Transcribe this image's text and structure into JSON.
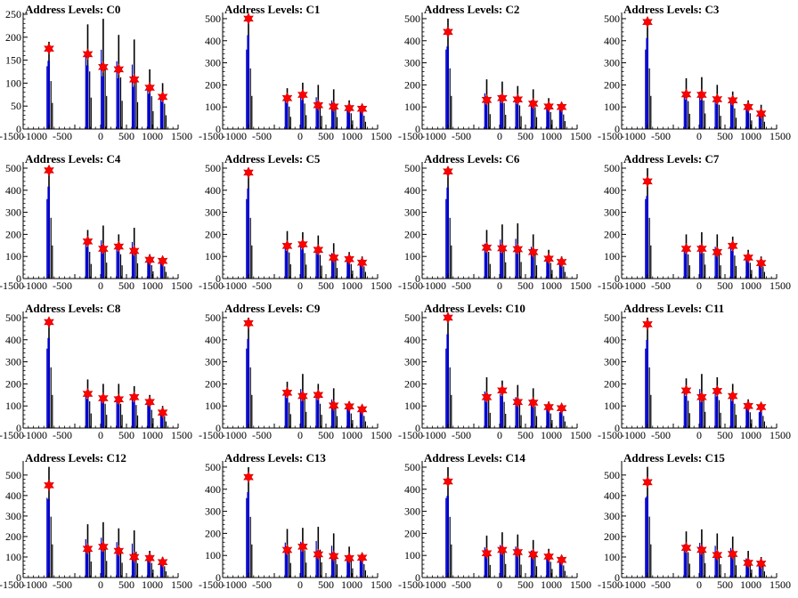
{
  "chart_data": [
    {
      "type": "bar",
      "title": "Address Levels: C0",
      "xlim": [
        -1500,
        1500
      ],
      "ylim": [
        0,
        250
      ],
      "yticks": [
        0,
        50,
        100,
        150,
        200,
        250
      ],
      "xticks": [
        -1500,
        -1000,
        -500,
        0,
        500,
        1000,
        1500
      ],
      "x": [
        -1000,
        -250,
        50,
        350,
        650,
        950,
        1200
      ],
      "markers": [
        175,
        163,
        135,
        130,
        108,
        90,
        70
      ],
      "peaks": [
        190,
        228,
        240,
        205,
        195,
        130,
        100
      ]
    },
    {
      "type": "bar",
      "title": "Address Levels: C1",
      "xlim": [
        -1500,
        1500
      ],
      "ylim": [
        0,
        520
      ],
      "yticks": [
        0,
        100,
        200,
        300,
        400,
        500
      ],
      "xticks": [
        -1500,
        -1000,
        -500,
        0,
        500,
        1000,
        1500
      ],
      "x": [
        -1000,
        -250,
        50,
        350,
        650,
        950,
        1200
      ],
      "markers": [
        500,
        140,
        155,
        108,
        102,
        95,
        92
      ],
      "peaks": [
        500,
        185,
        210,
        200,
        180,
        130,
        110
      ]
    },
    {
      "type": "bar",
      "title": "Address Levels: C2",
      "xlim": [
        -1500,
        1500
      ],
      "ylim": [
        0,
        520
      ],
      "yticks": [
        0,
        100,
        200,
        300,
        400,
        500
      ],
      "xticks": [
        -1500,
        -1000,
        -500,
        0,
        500,
        1000,
        1500
      ],
      "x": [
        -1000,
        -250,
        50,
        350,
        650,
        950,
        1200
      ],
      "markers": [
        440,
        132,
        140,
        134,
        115,
        102,
        100
      ],
      "peaks": [
        500,
        225,
        215,
        195,
        180,
        140,
        120
      ]
    },
    {
      "type": "bar",
      "title": "Address Levels: C3",
      "xlim": [
        -1500,
        1500
      ],
      "ylim": [
        0,
        520
      ],
      "yticks": [
        0,
        100,
        200,
        300,
        400,
        500
      ],
      "xticks": [
        -1500,
        -1000,
        -500,
        0,
        500,
        1000,
        1500
      ],
      "x": [
        -1000,
        -250,
        50,
        350,
        650,
        950,
        1200
      ],
      "markers": [
        485,
        157,
        155,
        135,
        130,
        100,
        70
      ],
      "peaks": [
        500,
        230,
        235,
        200,
        170,
        130,
        110
      ]
    },
    {
      "type": "bar",
      "title": "Address Levels: C4",
      "xlim": [
        -1500,
        1500
      ],
      "ylim": [
        0,
        520
      ],
      "yticks": [
        0,
        100,
        200,
        300,
        400,
        500
      ],
      "xticks": [
        -1500,
        -1000,
        -500,
        0,
        500,
        1000,
        1500
      ],
      "x": [
        -1000,
        -250,
        50,
        350,
        650,
        950,
        1200
      ],
      "markers": [
        490,
        168,
        135,
        145,
        125,
        85,
        80
      ],
      "peaks": [
        500,
        220,
        240,
        200,
        230,
        110,
        100
      ]
    },
    {
      "type": "bar",
      "title": "Address Levels: C5",
      "xlim": [
        -1500,
        1500
      ],
      "ylim": [
        0,
        520
      ],
      "yticks": [
        0,
        100,
        200,
        300,
        400,
        500
      ],
      "xticks": [
        -1500,
        -1000,
        -500,
        0,
        500,
        1000,
        1500
      ],
      "x": [
        -1000,
        -250,
        50,
        350,
        650,
        950,
        1200
      ],
      "markers": [
        480,
        148,
        155,
        130,
        95,
        88,
        72
      ],
      "peaks": [
        500,
        215,
        210,
        195,
        160,
        120,
        100
      ]
    },
    {
      "type": "bar",
      "title": "Address Levels: C6",
      "xlim": [
        -1500,
        1500
      ],
      "ylim": [
        0,
        520
      ],
      "yticks": [
        0,
        100,
        200,
        300,
        400,
        500
      ],
      "xticks": [
        -1500,
        -1000,
        -500,
        0,
        500,
        1000,
        1500
      ],
      "x": [
        -1000,
        -250,
        50,
        350,
        650,
        950,
        1200
      ],
      "markers": [
        485,
        140,
        137,
        133,
        120,
        90,
        75
      ],
      "peaks": [
        500,
        220,
        245,
        250,
        200,
        130,
        100
      ]
    },
    {
      "type": "bar",
      "title": "Address Levels: C7",
      "xlim": [
        -1500,
        1500
      ],
      "ylim": [
        0,
        520
      ],
      "yticks": [
        0,
        100,
        200,
        300,
        400,
        500
      ],
      "xticks": [
        -1500,
        -1000,
        -500,
        0,
        500,
        1000,
        1500
      ],
      "x": [
        -1000,
        -250,
        50,
        350,
        650,
        950,
        1200
      ],
      "markers": [
        440,
        135,
        135,
        120,
        148,
        95,
        70
      ],
      "peaks": [
        500,
        200,
        210,
        200,
        190,
        130,
        100
      ]
    },
    {
      "type": "bar",
      "title": "Address Levels: C8",
      "xlim": [
        -1500,
        1500
      ],
      "ylim": [
        0,
        520
      ],
      "yticks": [
        0,
        100,
        200,
        300,
        400,
        500
      ],
      "xticks": [
        -1500,
        -1000,
        -500,
        0,
        500,
        1000,
        1500
      ],
      "x": [
        -1000,
        -250,
        50,
        350,
        650,
        950,
        1200
      ],
      "markers": [
        480,
        155,
        135,
        130,
        140,
        118,
        70
      ],
      "peaks": [
        500,
        220,
        200,
        200,
        190,
        150,
        100
      ]
    },
    {
      "type": "bar",
      "title": "Address Levels: C9",
      "xlim": [
        -1500,
        1500
      ],
      "ylim": [
        0,
        520
      ],
      "yticks": [
        0,
        100,
        200,
        300,
        400,
        500
      ],
      "xticks": [
        -1500,
        -1000,
        -500,
        0,
        500,
        1000,
        1500
      ],
      "x": [
        -1000,
        -250,
        50,
        350,
        650,
        950,
        1200
      ],
      "markers": [
        475,
        160,
        145,
        150,
        102,
        98,
        85
      ],
      "peaks": [
        500,
        210,
        245,
        200,
        180,
        120,
        100
      ]
    },
    {
      "type": "bar",
      "title": "Address Levels: C10",
      "xlim": [
        -1500,
        1500
      ],
      "ylim": [
        0,
        520
      ],
      "yticks": [
        0,
        100,
        200,
        300,
        400,
        500
      ],
      "xticks": [
        -1500,
        -1000,
        -500,
        0,
        500,
        1000,
        1500
      ],
      "x": [
        -1000,
        -250,
        50,
        350,
        650,
        950,
        1200
      ],
      "markers": [
        500,
        140,
        170,
        118,
        115,
        95,
        90
      ],
      "peaks": [
        500,
        230,
        215,
        195,
        180,
        120,
        100
      ]
    },
    {
      "type": "bar",
      "title": "Address Levels: C11",
      "xlim": [
        -1500,
        1500
      ],
      "ylim": [
        0,
        520
      ],
      "yticks": [
        0,
        100,
        200,
        300,
        400,
        500
      ],
      "xticks": [
        -1500,
        -1000,
        -500,
        0,
        500,
        1000,
        1500
      ],
      "x": [
        -1000,
        -250,
        50,
        350,
        650,
        950,
        1200
      ],
      "markers": [
        470,
        170,
        140,
        168,
        145,
        100,
        95
      ],
      "peaks": [
        500,
        225,
        245,
        230,
        200,
        130,
        100
      ]
    },
    {
      "type": "bar",
      "title": "Address Levels: C12",
      "xlim": [
        -1500,
        1500
      ],
      "ylim": [
        0,
        560
      ],
      "yticks": [
        0,
        100,
        200,
        300,
        400,
        500
      ],
      "xticks": [
        -1500,
        -1000,
        -500,
        0,
        500,
        1000,
        1500
      ],
      "x": [
        -1000,
        -250,
        50,
        350,
        650,
        950,
        1200
      ],
      "markers": [
        450,
        140,
        150,
        130,
        100,
        95,
        75
      ],
      "peaks": [
        540,
        260,
        270,
        240,
        230,
        130,
        100
      ]
    },
    {
      "type": "bar",
      "title": "Address Levels: C13",
      "xlim": [
        -1500,
        1500
      ],
      "ylim": [
        0,
        520
      ],
      "yticks": [
        0,
        100,
        200,
        300,
        400,
        500
      ],
      "xticks": [
        -1500,
        -1000,
        -500,
        0,
        500,
        1000,
        1500
      ],
      "x": [
        -1000,
        -250,
        50,
        350,
        650,
        950,
        1200
      ],
      "markers": [
        455,
        125,
        140,
        105,
        97,
        88,
        90
      ],
      "peaks": [
        500,
        220,
        225,
        230,
        200,
        140,
        110
      ]
    },
    {
      "type": "bar",
      "title": "Address Levels: C14",
      "xlim": [
        -1500,
        1500
      ],
      "ylim": [
        0,
        520
      ],
      "yticks": [
        0,
        100,
        200,
        300,
        400,
        500
      ],
      "xticks": [
        -1500,
        -1000,
        -500,
        0,
        500,
        1000,
        1500
      ],
      "x": [
        -1000,
        -250,
        50,
        350,
        650,
        950,
        1200
      ],
      "markers": [
        435,
        110,
        125,
        115,
        105,
        95,
        80
      ],
      "peaks": [
        500,
        190,
        205,
        195,
        170,
        130,
        100
      ]
    },
    {
      "type": "bar",
      "title": "Address Levels: C15",
      "xlim": [
        -1500,
        1500
      ],
      "ylim": [
        0,
        560
      ],
      "yticks": [
        0,
        100,
        200,
        300,
        400,
        500
      ],
      "xticks": [
        -1500,
        -1000,
        -500,
        0,
        500,
        1000,
        1500
      ],
      "x": [
        -1000,
        -250,
        50,
        350,
        650,
        950,
        1200
      ],
      "markers": [
        465,
        145,
        135,
        110,
        115,
        72,
        68
      ],
      "peaks": [
        540,
        225,
        235,
        215,
        200,
        130,
        100
      ]
    }
  ],
  "colors": {
    "bar": "#0000cc",
    "bar_dark": "#000000",
    "marker": "#ff0000",
    "marker_edge": "#cc0000",
    "axis": "#000000"
  }
}
